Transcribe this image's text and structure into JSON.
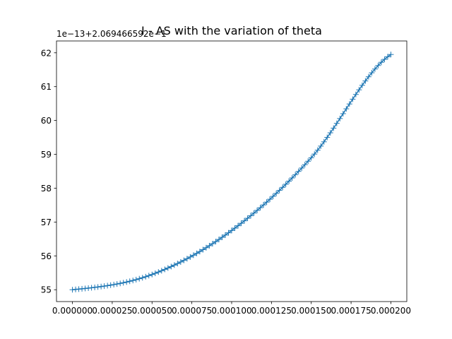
{
  "chart_data": {
    "type": "scatter",
    "title": "I - AS with the variation of theta",
    "offset_text": "1e−13+2.069466592e−1",
    "xlabel": "",
    "ylabel": "",
    "marker": "+",
    "color": "#1f77b4",
    "grid": false,
    "legend": "none",
    "xlim": [
      -1e-05,
      0.00021
    ],
    "ylim": [
      54.65,
      62.35
    ],
    "x_ticks": [
      0.0,
      2.5e-05,
      5e-05,
      7.5e-05,
      0.0001,
      0.000125,
      0.00015,
      0.000175,
      0.0002
    ],
    "x_tick_labels": [
      "0.000000",
      "0.000025",
      "0.000050",
      "0.000075",
      "0.000100",
      "0.000125",
      "0.000150",
      "0.000175",
      "0.000200"
    ],
    "y_ticks": [
      55,
      56,
      57,
      58,
      59,
      60,
      61,
      62
    ],
    "y_tick_labels": [
      "55",
      "56",
      "57",
      "58",
      "59",
      "60",
      "61",
      "62"
    ],
    "x_start": 0.0,
    "x_end": 0.0002,
    "n_points": 101,
    "x_sample": [
      0.0,
      5e-05,
      0.0001,
      0.00015,
      0.0002
    ],
    "y_sample": [
      55.0,
      55.45,
      56.75,
      58.9,
      61.95
    ]
  }
}
